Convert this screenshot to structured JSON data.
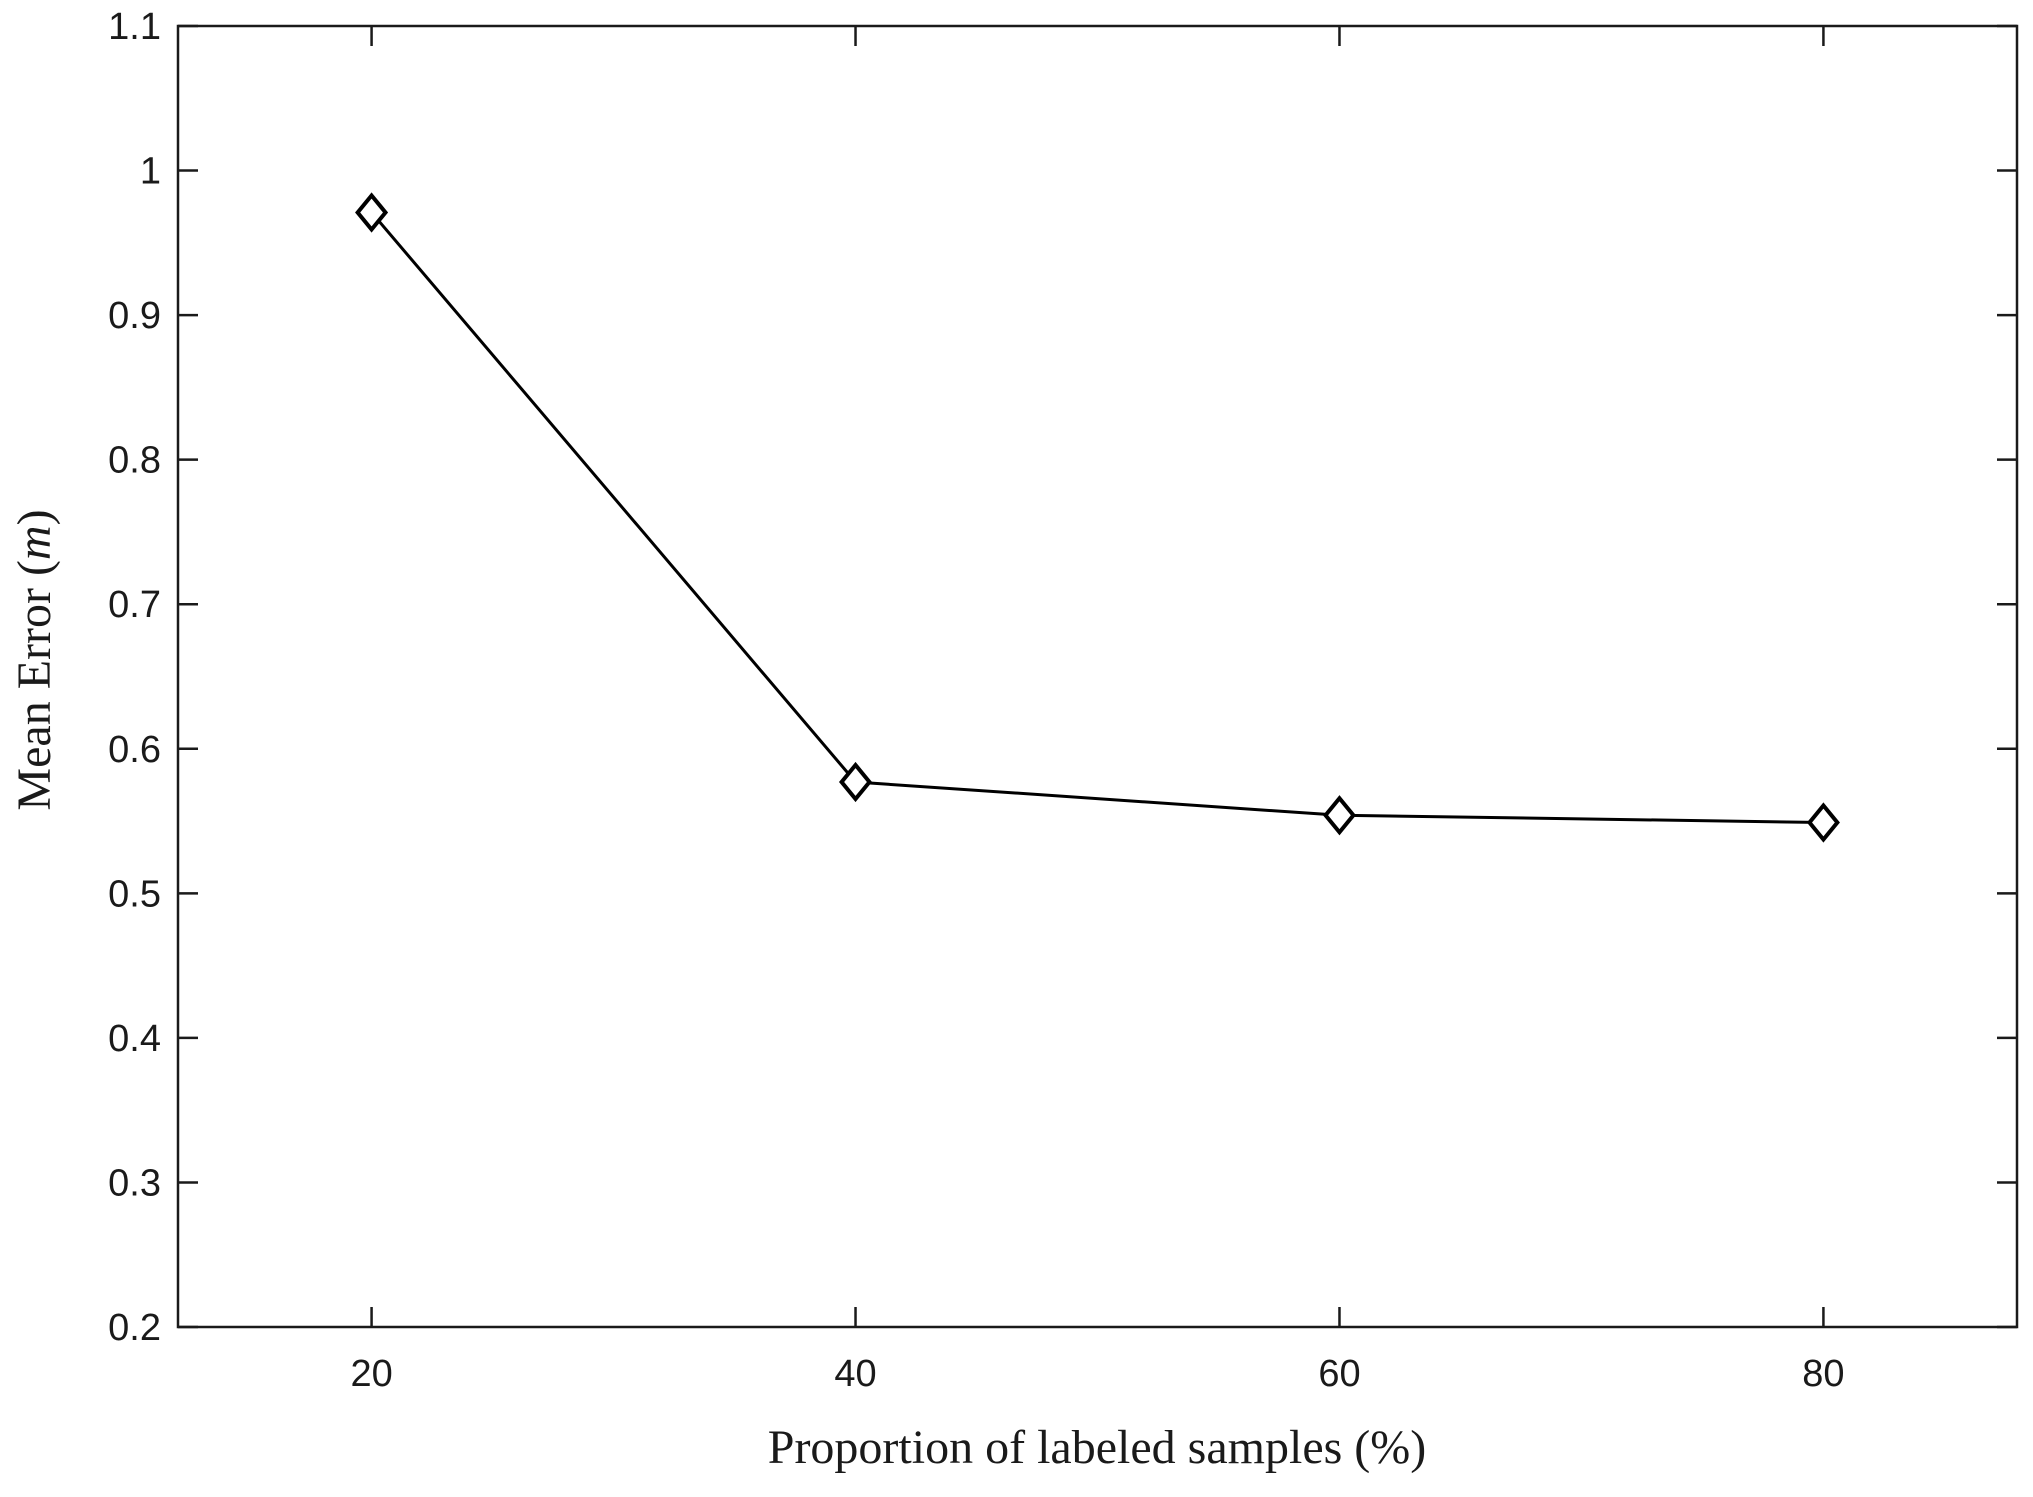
{
  "chart_data": {
    "type": "line",
    "xlabel": "Proportion of labeled samples (%)",
    "ylabel": "Mean Error (",
    "ylabel_symbol": "m",
    "ylabel_close": ")",
    "x": [
      20,
      40,
      60,
      80
    ],
    "series": [
      {
        "values": [
          0.971,
          0.577,
          0.554,
          0.549
        ],
        "color": "#000000",
        "marker": "diamond"
      }
    ],
    "xlim": [
      12,
      88
    ],
    "ylim": [
      0.2,
      1.1
    ],
    "xticks": [
      20,
      40,
      60,
      80
    ],
    "xtick_labels": [
      "20",
      "40",
      "60",
      "80"
    ],
    "yticks": [
      0.2,
      0.3,
      0.4,
      0.5,
      0.6,
      0.7,
      0.8,
      0.9,
      1.0,
      1.1
    ],
    "ytick_labels": [
      "0.2",
      "0.3",
      "0.4",
      "0.5",
      "0.6",
      "0.7",
      "0.8",
      "0.9",
      "1",
      "1.1"
    ],
    "grid": false,
    "legend": "none"
  }
}
